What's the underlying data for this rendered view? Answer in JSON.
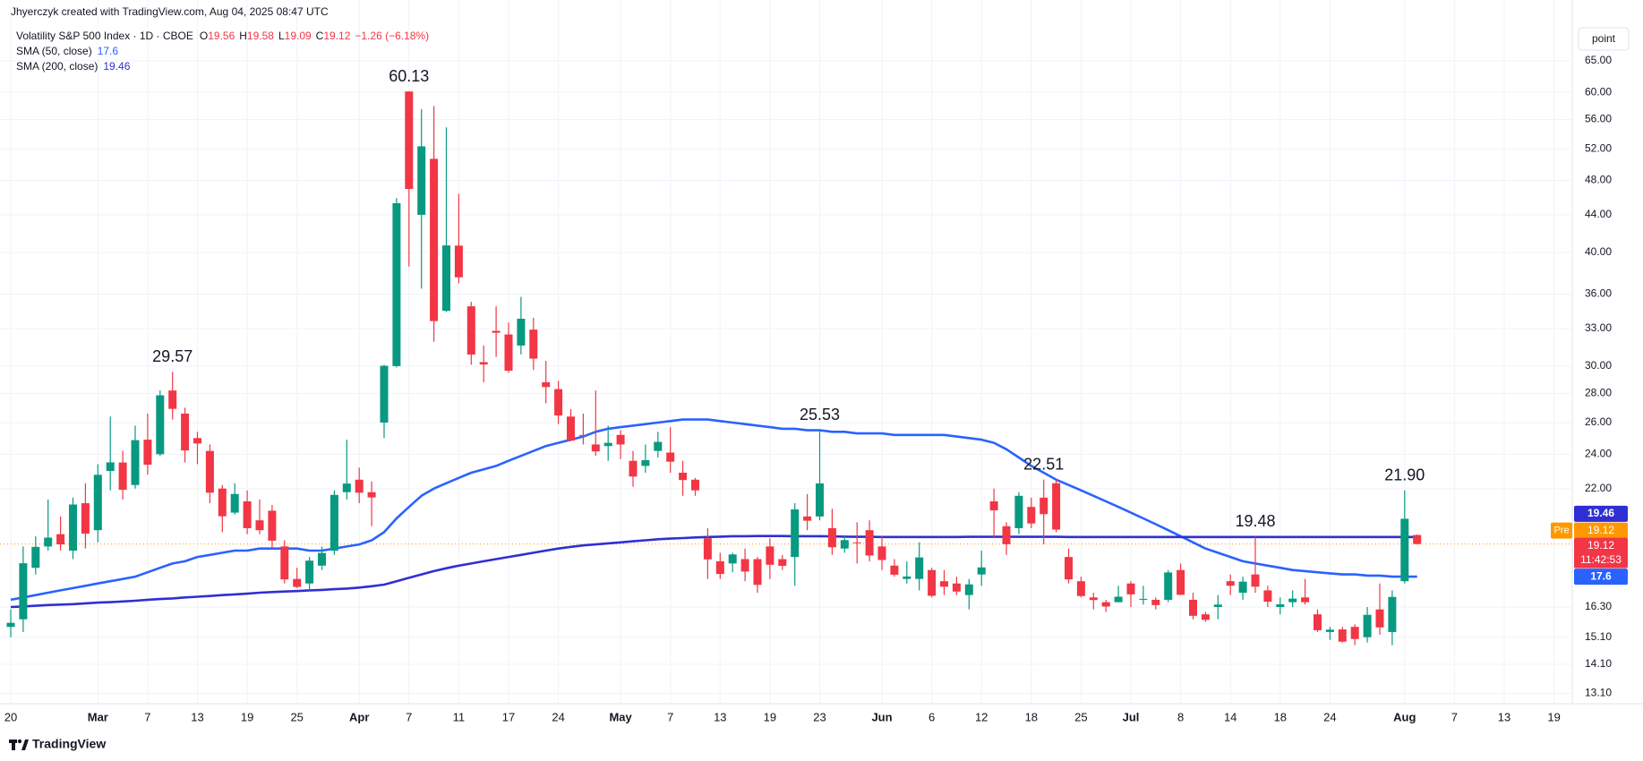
{
  "header": {
    "credit": "Jhyerczyk created with TradingView.com, Aug 04, 2025 08:47 UTC",
    "scale_button": "point",
    "brand": "TradingView"
  },
  "chart_data": {
    "type": "candlestick",
    "title": "Volatility S&P 500 Index · 1D · CBOE",
    "ohlc_prefixes": [
      "O",
      "H",
      "L",
      "C"
    ],
    "change": "−1.26 (−6.18%)",
    "pre_label": "Pre",
    "countdown": "11:42:53",
    "up_color": "#089981",
    "down_color": "#f23645",
    "price_line_color": "#ff9800",
    "log_scale": true,
    "grid": true,
    "ylim": [
      12.76,
      75.8
    ],
    "yticks": [
      {
        "value": 65,
        "label": "65.00"
      },
      {
        "value": 60,
        "label": "60.00"
      },
      {
        "value": 56,
        "label": "56.00"
      },
      {
        "value": 52,
        "label": "52.00"
      },
      {
        "value": 48,
        "label": "48.00"
      },
      {
        "value": 44,
        "label": "44.00"
      },
      {
        "value": 40,
        "label": "40.00"
      },
      {
        "value": 36,
        "label": "36.00"
      },
      {
        "value": 33,
        "label": "33.00"
      },
      {
        "value": 30,
        "label": "30.00"
      },
      {
        "value": 28,
        "label": "28.00"
      },
      {
        "value": 26,
        "label": "26.00"
      },
      {
        "value": 24,
        "label": "24.00"
      },
      {
        "value": 22,
        "label": "22.00"
      },
      {
        "value": 16.3,
        "label": "16.30"
      },
      {
        "value": 15.1,
        "label": "15.10"
      },
      {
        "value": 14.1,
        "label": "14.10"
      },
      {
        "value": 13.1,
        "label": "13.10"
      }
    ],
    "categories": [
      "20",
      null,
      null,
      null,
      null,
      null,
      null,
      "Mar",
      null,
      null,
      null,
      "7",
      null,
      null,
      null,
      "13",
      null,
      null,
      null,
      "19",
      null,
      null,
      null,
      "25",
      null,
      null,
      null,
      null,
      "Apr",
      null,
      null,
      null,
      "7",
      null,
      null,
      null,
      "11",
      null,
      null,
      null,
      "17",
      null,
      null,
      null,
      "24",
      null,
      null,
      null,
      null,
      "May",
      null,
      null,
      null,
      "7",
      null,
      null,
      null,
      "13",
      null,
      null,
      null,
      "19",
      null,
      null,
      null,
      "23",
      null,
      null,
      null,
      null,
      "Jun",
      null,
      null,
      null,
      "6",
      null,
      null,
      null,
      "12",
      null,
      null,
      null,
      "18",
      null,
      null,
      null,
      "25",
      null,
      null,
      null,
      "Jul",
      null,
      null,
      null,
      "8",
      null,
      null,
      null,
      "14",
      null,
      null,
      null,
      "18",
      null,
      null,
      null,
      "24",
      null,
      null,
      null,
      null,
      null,
      "Aug",
      null,
      null,
      null,
      "7",
      null,
      null,
      null,
      "13",
      null,
      null,
      null,
      "19",
      null
    ],
    "open": [
      15.5,
      15.8,
      18.0,
      19.0,
      19.6,
      18.8,
      21.2,
      19.8,
      23.0,
      23.5,
      22.2,
      24.9,
      24.0,
      28.2,
      26.6,
      25.0,
      24.2,
      22.0,
      20.7,
      21.3,
      20.3,
      20.8,
      19.0,
      17.5,
      17.3,
      18.1,
      18.8,
      21.8,
      22.5,
      21.8,
      26.0,
      30.0,
      60.13,
      44.0,
      50.7,
      34.5,
      40.7,
      34.9,
      30.3,
      32.8,
      32.5,
      31.6,
      32.9,
      28.8,
      28.3,
      26.4,
      25.2,
      24.6,
      24.5,
      25.2,
      23.6,
      23.3,
      24.2,
      24.1,
      22.9,
      22.5,
      19.4,
      18.3,
      18.2,
      18.4,
      18.4,
      19.0,
      18.4,
      18.5,
      20.5,
      20.5,
      19.9,
      18.9,
      19.2,
      19.8,
      19.0,
      18.1,
      17.5,
      17.5,
      17.9,
      17.4,
      17.3,
      16.8,
      17.7,
      21.3,
      20.0,
      19.9,
      21.0,
      21.5,
      22.3,
      18.5,
      17.4,
      16.7,
      16.5,
      16.5,
      17.3,
      16.6,
      16.6,
      16.6,
      17.9,
      16.6,
      16.0,
      16.3,
      17.4,
      16.9,
      17.7,
      17.0,
      16.3,
      16.5,
      16.7,
      16.0,
      15.3,
      15.4,
      15.5,
      15.1,
      16.2,
      15.3,
      17.4,
      19.56,
      null,
      null,
      null,
      null,
      null,
      null,
      null,
      null,
      null,
      null,
      null,
      null
    ],
    "high": [
      16.2,
      19.0,
      19.5,
      21.4,
      20.5,
      21.5,
      22.3,
      23.4,
      26.4,
      24.2,
      25.8,
      26.6,
      28.2,
      29.57,
      27.0,
      25.4,
      24.6,
      22.2,
      22.3,
      21.9,
      21.4,
      21.1,
      19.3,
      18.0,
      18.5,
      19.0,
      21.9,
      24.9,
      23.2,
      22.4,
      30.1,
      45.9,
      60.13,
      57.5,
      57.96,
      54.9,
      46.4,
      35.3,
      31.6,
      34.9,
      33.5,
      35.75,
      33.9,
      30.4,
      28.9,
      26.9,
      26.6,
      28.2,
      25.8,
      25.5,
      24.2,
      24.6,
      25.4,
      25.7,
      23.6,
      22.6,
      19.9,
      18.7,
      18.7,
      18.9,
      18.5,
      19.4,
      18.6,
      21.2,
      21.7,
      25.53,
      20.9,
      19.5,
      20.2,
      20.3,
      19.5,
      18.4,
      18.3,
      19.2,
      18.0,
      17.9,
      17.6,
      17.5,
      18.8,
      22.0,
      20.2,
      21.8,
      21.5,
      22.51,
      22.5,
      18.9,
      17.6,
      16.9,
      16.6,
      17.2,
      17.4,
      17.2,
      16.7,
      17.9,
      18.2,
      16.9,
      16.1,
      16.8,
      17.7,
      17.6,
      19.48,
      17.2,
      16.7,
      17.0,
      17.5,
      16.2,
      15.5,
      15.5,
      15.6,
      16.3,
      17.3,
      17.0,
      21.9,
      19.58,
      null,
      null,
      null,
      null,
      null,
      null,
      null,
      null,
      null,
      null,
      null,
      null
    ],
    "low": [
      15.1,
      15.3,
      17.7,
      18.8,
      18.8,
      18.4,
      18.9,
      19.2,
      21.9,
      21.4,
      22.0,
      22.8,
      23.9,
      26.2,
      23.5,
      23.4,
      21.2,
      19.7,
      20.6,
      19.6,
      19.6,
      18.9,
      17.3,
      17.1,
      17.0,
      17.9,
      18.6,
      21.4,
      21.2,
      20.0,
      25.0,
      29.9,
      38.6,
      36.5,
      31.9,
      34.4,
      37.0,
      30.1,
      28.8,
      30.7,
      29.5,
      30.9,
      29.7,
      27.3,
      25.9,
      24.8,
      24.6,
      23.9,
      23.6,
      23.7,
      22.1,
      22.9,
      23.8,
      22.9,
      21.6,
      21.6,
      17.5,
      17.5,
      17.8,
      17.4,
      16.9,
      17.5,
      17.9,
      17.2,
      19.8,
      20.3,
      18.6,
      18.7,
      18.2,
      18.3,
      17.9,
      17.6,
      17.3,
      17.0,
      16.7,
      16.8,
      16.8,
      16.2,
      17.2,
      19.4,
      18.6,
      19.6,
      19.9,
      19.1,
      19.7,
      17.3,
      16.7,
      16.2,
      16.1,
      16.5,
      16.3,
      16.4,
      16.2,
      16.5,
      16.8,
      15.8,
      15.7,
      15.8,
      16.8,
      16.6,
      16.9,
      16.3,
      16.0,
      16.3,
      16.4,
      15.3,
      15.0,
      14.9,
      14.8,
      14.9,
      15.2,
      14.8,
      17.3,
      19.09,
      null,
      null,
      null,
      null,
      null,
      null,
      null,
      null,
      null,
      null,
      null,
      null
    ],
    "close": [
      15.66,
      18.21,
      18.98,
      19.43,
      19.1,
      21.13,
      19.63,
      22.78,
      23.51,
      21.93,
      24.87,
      23.37,
      27.86,
      26.92,
      24.23,
      24.66,
      21.77,
      20.51,
      21.7,
      19.9,
      19.8,
      19.28,
      17.48,
      17.15,
      18.33,
      18.69,
      21.65,
      22.28,
      21.77,
      21.51,
      30.02,
      45.31,
      46.98,
      52.33,
      33.62,
      40.72,
      37.56,
      30.89,
      30.12,
      32.64,
      29.65,
      33.82,
      30.57,
      28.45,
      26.47,
      24.84,
      25.15,
      24.17,
      24.7,
      24.6,
      22.68,
      23.64,
      24.76,
      23.55,
      22.48,
      21.9,
      18.39,
      17.72,
      18.62,
      17.83,
      17.24,
      18.14,
      18.09,
      20.87,
      20.28,
      22.29,
      18.96,
      19.31,
      19.18,
      18.57,
      18.36,
      17.69,
      17.61,
      18.48,
      16.77,
      17.16,
      16.95,
      17.26,
      18.02,
      20.82,
      19.11,
      21.6,
      20.14,
      20.62,
      19.83,
      17.48,
      16.76,
      16.59,
      16.32,
      16.73,
      16.83,
      16.64,
      16.38,
      17.79,
      16.81,
      15.94,
      15.78,
      16.4,
      17.2,
      17.38,
      17.16,
      16.52,
      16.41,
      16.65,
      16.5,
      15.37,
      15.39,
      14.93,
      15.03,
      15.98,
      15.48,
      16.72,
      20.38,
      19.12,
      null,
      null,
      null,
      null,
      null,
      null,
      null,
      null,
      null,
      null,
      null,
      null
    ],
    "high_labels": [
      null,
      null,
      null,
      null,
      null,
      null,
      null,
      null,
      null,
      null,
      null,
      null,
      null,
      "29.57",
      null,
      null,
      null,
      null,
      null,
      null,
      null,
      null,
      null,
      null,
      null,
      null,
      null,
      null,
      null,
      null,
      null,
      null,
      "60.13",
      null,
      null,
      null,
      null,
      null,
      null,
      null,
      null,
      null,
      null,
      null,
      null,
      null,
      null,
      null,
      null,
      null,
      null,
      null,
      null,
      null,
      null,
      null,
      null,
      null,
      null,
      null,
      null,
      null,
      null,
      null,
      null,
      "25.53",
      null,
      null,
      null,
      null,
      null,
      null,
      null,
      null,
      null,
      null,
      null,
      null,
      null,
      null,
      null,
      null,
      null,
      "22.51",
      null,
      null,
      null,
      null,
      null,
      null,
      null,
      null,
      null,
      null,
      null,
      null,
      null,
      null,
      null,
      null,
      "19.48",
      null,
      null,
      null,
      null,
      null,
      null,
      null,
      null,
      null,
      null,
      null,
      "21.90",
      null,
      null,
      null,
      null,
      null,
      null,
      null,
      null,
      null,
      null,
      null,
      null,
      null
    ],
    "series": [
      {
        "name": "SMA (50, close)",
        "color": "#2962ff",
        "values": [
          16.6,
          16.7,
          16.8,
          16.9,
          17.0,
          17.1,
          17.2,
          17.3,
          17.4,
          17.5,
          17.6,
          17.8,
          18.0,
          18.2,
          18.3,
          18.5,
          18.6,
          18.7,
          18.8,
          18.8,
          18.9,
          18.9,
          18.9,
          18.9,
          18.8,
          18.8,
          18.9,
          19.0,
          19.1,
          19.3,
          19.7,
          20.4,
          21.0,
          21.6,
          22.0,
          22.3,
          22.6,
          22.9,
          23.1,
          23.3,
          23.6,
          23.9,
          24.2,
          24.5,
          24.7,
          24.9,
          25.1,
          25.4,
          25.6,
          25.7,
          25.8,
          25.9,
          26.0,
          26.1,
          26.2,
          26.2,
          26.2,
          26.1,
          26.0,
          25.9,
          25.8,
          25.7,
          25.6,
          25.6,
          25.5,
          25.5,
          25.4,
          25.4,
          25.3,
          25.3,
          25.3,
          25.2,
          25.2,
          25.2,
          25.2,
          25.2,
          25.1,
          25.0,
          24.9,
          24.7,
          24.3,
          23.8,
          23.3,
          22.9,
          22.5,
          22.2,
          21.9,
          21.6,
          21.3,
          21.0,
          20.7,
          20.4,
          20.1,
          19.8,
          19.5,
          19.2,
          18.9,
          18.7,
          18.5,
          18.3,
          18.2,
          18.1,
          18.0,
          17.9,
          17.85,
          17.8,
          17.75,
          17.7,
          17.7,
          17.65,
          17.65,
          17.6,
          17.6,
          17.6,
          null,
          null,
          null,
          null,
          null,
          null,
          null,
          null,
          null,
          null,
          null,
          null
        ]
      },
      {
        "name": "SMA (200, close)",
        "color": "#2f2fd3",
        "values": [
          16.3,
          16.32,
          16.35,
          16.38,
          16.4,
          16.42,
          16.45,
          16.48,
          16.5,
          16.53,
          16.56,
          16.6,
          16.63,
          16.66,
          16.7,
          16.73,
          16.76,
          16.8,
          16.83,
          16.86,
          16.9,
          16.93,
          16.95,
          16.97,
          17.0,
          17.02,
          17.05,
          17.08,
          17.12,
          17.18,
          17.25,
          17.4,
          17.55,
          17.7,
          17.85,
          17.98,
          18.1,
          18.2,
          18.3,
          18.4,
          18.5,
          18.6,
          18.7,
          18.8,
          18.9,
          18.98,
          19.05,
          19.1,
          19.15,
          19.2,
          19.25,
          19.3,
          19.35,
          19.38,
          19.41,
          19.44,
          19.46,
          19.48,
          19.5,
          19.5,
          19.51,
          19.51,
          19.51,
          19.5,
          19.5,
          19.5,
          19.49,
          19.48,
          19.47,
          19.47,
          19.46,
          19.46,
          19.46,
          19.46,
          19.46,
          19.46,
          19.46,
          19.47,
          19.47,
          19.47,
          19.47,
          19.47,
          19.47,
          19.47,
          19.47,
          19.46,
          19.46,
          19.46,
          19.46,
          19.46,
          19.46,
          19.46,
          19.46,
          19.46,
          19.46,
          19.46,
          19.46,
          19.46,
          19.46,
          19.46,
          19.46,
          19.46,
          19.46,
          19.46,
          19.46,
          19.46,
          19.46,
          19.46,
          19.46,
          19.46,
          19.46,
          19.46,
          19.46,
          19.46,
          null,
          null,
          null,
          null,
          null,
          null,
          null,
          null,
          null,
          null,
          null,
          null
        ]
      }
    ]
  }
}
